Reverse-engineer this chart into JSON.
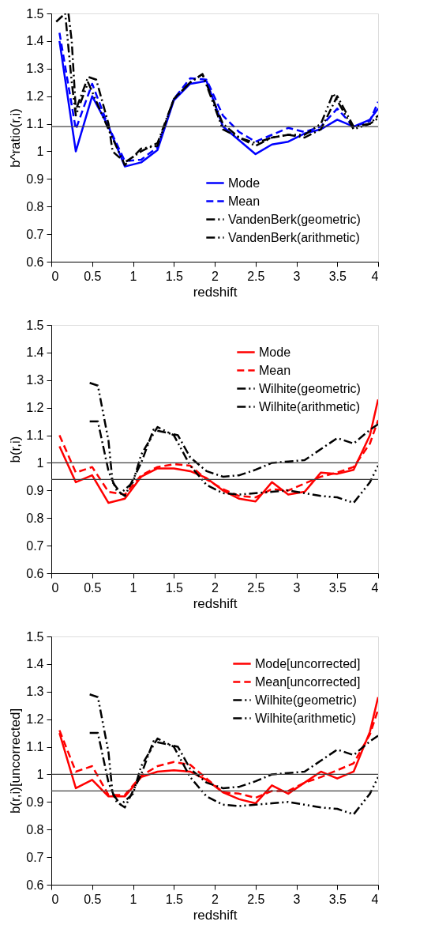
{
  "chart_data": [
    {
      "type": "line",
      "xlabel": "redshift",
      "ylabel": "b^ratio(r,i)",
      "xlim": [
        0,
        4
      ],
      "ylim": [
        0.6,
        1.5
      ],
      "xticks": [
        0,
        0.5,
        1,
        1.5,
        2,
        2.5,
        3,
        3.5,
        4
      ],
      "yticks": [
        0.6,
        0.7,
        0.8,
        0.9,
        1,
        1.1,
        1.2,
        1.3,
        1.4,
        1.5
      ],
      "legend": "bottom right",
      "ref_lines": [
        {
          "axis": "y",
          "value": 1.09,
          "color": "#404040"
        }
      ],
      "series": [
        {
          "name": "Mode",
          "color": "#0000ff",
          "line_style": "solid",
          "x": [
            0.1,
            0.3,
            0.5,
            0.7,
            0.9,
            1.1,
            1.3,
            1.5,
            1.7,
            1.9,
            2.1,
            2.3,
            2.5,
            2.7,
            2.9,
            3.1,
            3.3,
            3.5,
            3.7,
            3.9,
            4.0
          ],
          "values": [
            1.4,
            1.0,
            1.2,
            1.09,
            0.945,
            0.96,
            1.005,
            1.185,
            1.245,
            1.255,
            1.09,
            1.04,
            0.99,
            1.025,
            1.035,
            1.065,
            1.08,
            1.115,
            1.09,
            1.115,
            1.155
          ]
        },
        {
          "name": "Mean",
          "color": "#0000ff",
          "line_style": "dashed",
          "x": [
            0.1,
            0.3,
            0.5,
            0.7,
            0.9,
            1.1,
            1.3,
            1.5,
            1.7,
            1.9,
            2.1,
            2.3,
            2.5,
            2.7,
            2.9,
            3.1,
            3.3,
            3.5,
            3.7,
            3.9,
            4.0
          ],
          "values": [
            1.43,
            1.08,
            1.245,
            1.09,
            0.965,
            0.97,
            1.015,
            1.19,
            1.265,
            1.26,
            1.13,
            1.07,
            1.035,
            1.06,
            1.085,
            1.07,
            1.09,
            1.155,
            1.09,
            1.11,
            1.18
          ]
        },
        {
          "name": "VandenBerk(geometric)",
          "color": "#000000",
          "line_style": "dashdot",
          "x": [
            0.21,
            0.25,
            0.3,
            0.45,
            0.55,
            0.7,
            0.75,
            0.9,
            1.1,
            1.3,
            1.5,
            1.7,
            1.85,
            2.1,
            2.3,
            2.5,
            2.7,
            2.9,
            3.1,
            3.3,
            3.5,
            3.7,
            3.9,
            4.0
          ],
          "values": [
            1.5,
            1.4,
            1.15,
            1.27,
            1.26,
            1.1,
            1.0,
            0.96,
            1.0,
            1.03,
            1.19,
            1.25,
            1.28,
            1.1,
            1.05,
            1.02,
            1.05,
            1.06,
            1.05,
            1.08,
            1.2,
            1.09,
            1.1,
            1.13
          ]
        },
        {
          "name": "VandenBerk(arithmetic)",
          "color": "#000000",
          "line_style": "dashdotdot",
          "x": [
            0.06,
            0.17,
            0.25,
            0.3,
            0.45,
            0.7,
            0.9,
            1.1,
            1.3,
            1.5,
            1.7,
            1.85,
            2.1,
            2.3,
            2.5,
            2.7,
            2.9,
            3.1,
            3.3,
            3.45,
            3.7,
            3.9,
            4.0
          ],
          "values": [
            1.47,
            1.5,
            1.25,
            1.13,
            1.25,
            1.08,
            0.95,
            1.01,
            1.02,
            1.19,
            1.25,
            1.28,
            1.08,
            1.05,
            1.03,
            1.05,
            1.06,
            1.06,
            1.1,
            1.21,
            1.08,
            1.1,
            1.12
          ]
        }
      ]
    },
    {
      "type": "line",
      "xlabel": "redshift",
      "ylabel": "b(r,i)",
      "xlim": [
        0,
        4
      ],
      "ylim": [
        0.6,
        1.5
      ],
      "xticks": [
        0,
        0.5,
        1,
        1.5,
        2,
        2.5,
        3,
        3.5,
        4
      ],
      "yticks": [
        0.6,
        0.7,
        0.8,
        0.9,
        1,
        1.1,
        1.2,
        1.3,
        1.4,
        1.5
      ],
      "legend": "top right",
      "ref_lines": [
        {
          "axis": "y",
          "value": 1,
          "color": "#404040"
        },
        {
          "axis": "y",
          "value": 0.94,
          "color": "#404040"
        }
      ],
      "series": [
        {
          "name": "Mode",
          "color": "#ff0000",
          "line_style": "solid",
          "x": [
            0.1,
            0.3,
            0.5,
            0.7,
            0.9,
            1.1,
            1.3,
            1.5,
            1.7,
            1.9,
            2.1,
            2.3,
            2.5,
            2.7,
            2.9,
            3.1,
            3.3,
            3.5,
            3.7,
            3.9,
            4.0
          ],
          "values": [
            1.06,
            0.93,
            0.955,
            0.855,
            0.87,
            0.95,
            0.98,
            0.98,
            0.97,
            0.945,
            0.9,
            0.87,
            0.86,
            0.93,
            0.885,
            0.895,
            0.965,
            0.96,
            0.975,
            1.1,
            1.23
          ]
        },
        {
          "name": "Mean",
          "color": "#ff0000",
          "line_style": "dashed",
          "x": [
            0.1,
            0.3,
            0.5,
            0.7,
            0.9,
            1.1,
            1.3,
            1.5,
            1.7,
            1.9,
            2.1,
            2.3,
            2.5,
            2.7,
            2.9,
            3.1,
            3.3,
            3.5,
            3.7,
            3.9,
            4.0
          ],
          "values": [
            1.1,
            0.965,
            0.985,
            0.895,
            0.885,
            0.955,
            0.985,
            0.995,
            0.99,
            0.94,
            0.905,
            0.88,
            0.875,
            0.905,
            0.9,
            0.925,
            0.95,
            0.965,
            0.985,
            1.07,
            1.155
          ]
        },
        {
          "name": "Wilhite(geometric)",
          "color": "#000000",
          "line_style": "dashdot",
          "x": [
            0.47,
            0.57,
            0.7,
            0.8,
            0.9,
            1.1,
            1.25,
            1.4,
            1.55,
            1.7,
            1.9,
            2.1,
            2.3,
            2.5,
            2.7,
            2.9,
            3.1,
            3.3,
            3.5,
            3.7,
            3.9,
            4.0
          ],
          "values": [
            1.15,
            1.15,
            0.97,
            0.9,
            0.88,
            1.0,
            1.12,
            1.11,
            1.1,
            1.02,
            0.97,
            0.95,
            0.955,
            0.975,
            1.0,
            1.005,
            1.01,
            1.05,
            1.09,
            1.07,
            1.12,
            1.14
          ]
        },
        {
          "name": "Wilhite(arithmetic)",
          "color": "#000000",
          "line_style": "dashdotdot",
          "x": [
            0.47,
            0.57,
            0.7,
            0.75,
            0.85,
            1.0,
            1.1,
            1.3,
            1.5,
            1.7,
            1.9,
            2.1,
            2.3,
            2.5,
            2.7,
            2.9,
            3.1,
            3.3,
            3.5,
            3.7,
            3.9,
            4.0
          ],
          "values": [
            1.29,
            1.28,
            1.08,
            0.93,
            0.89,
            0.93,
            1.03,
            1.13,
            1.1,
            0.99,
            0.92,
            0.89,
            0.885,
            0.89,
            0.895,
            0.9,
            0.89,
            0.88,
            0.875,
            0.855,
            0.93,
            0.99
          ]
        }
      ]
    },
    {
      "type": "line",
      "xlabel": "redshift",
      "ylabel": "b(r,i)[uncorrected]",
      "xlim": [
        0,
        4
      ],
      "ylim": [
        0.6,
        1.5
      ],
      "xticks": [
        0,
        0.5,
        1,
        1.5,
        2,
        2.5,
        3,
        3.5,
        4
      ],
      "yticks": [
        0.6,
        0.7,
        0.8,
        0.9,
        1,
        1.1,
        1.2,
        1.3,
        1.4,
        1.5
      ],
      "legend": "top right",
      "ref_lines": [
        {
          "axis": "y",
          "value": 1,
          "color": "#404040"
        },
        {
          "axis": "y",
          "value": 0.94,
          "color": "#404040"
        }
      ],
      "series": [
        {
          "name": "Mode[uncorrected]",
          "color": "#ff0000",
          "line_style": "solid",
          "x": [
            0.1,
            0.3,
            0.5,
            0.7,
            0.9,
            1.1,
            1.3,
            1.5,
            1.7,
            1.9,
            2.1,
            2.3,
            2.5,
            2.7,
            2.9,
            3.1,
            3.3,
            3.5,
            3.7,
            3.9,
            4.0
          ],
          "values": [
            1.15,
            0.95,
            0.98,
            0.92,
            0.92,
            0.99,
            1.01,
            1.015,
            1.01,
            0.98,
            0.935,
            0.91,
            0.895,
            0.96,
            0.93,
            0.97,
            1.01,
            0.985,
            1.01,
            1.155,
            1.28
          ]
        },
        {
          "name": "Mean[uncorrected]",
          "color": "#ff0000",
          "line_style": "dashed",
          "x": [
            0.1,
            0.3,
            0.5,
            0.7,
            0.9,
            1.1,
            1.3,
            1.5,
            1.7,
            1.9,
            2.1,
            2.3,
            2.5,
            2.7,
            2.9,
            3.1,
            3.3,
            3.5,
            3.7,
            3.9,
            4.0
          ],
          "values": [
            1.16,
            1.01,
            1.03,
            0.925,
            0.925,
            0.995,
            1.03,
            1.045,
            1.035,
            0.985,
            0.935,
            0.93,
            0.915,
            0.94,
            0.94,
            0.97,
            0.99,
            1.015,
            1.04,
            1.145,
            1.235
          ]
        },
        {
          "name": "Wilhite(geometric)",
          "color": "#000000",
          "line_style": "dashdot",
          "x": [
            0.47,
            0.57,
            0.7,
            0.8,
            0.9,
            1.1,
            1.25,
            1.4,
            1.55,
            1.7,
            1.9,
            2.1,
            2.3,
            2.5,
            2.7,
            2.9,
            3.1,
            3.3,
            3.5,
            3.7,
            3.9,
            4.0
          ],
          "values": [
            1.15,
            1.15,
            0.97,
            0.9,
            0.88,
            1.0,
            1.12,
            1.11,
            1.1,
            1.02,
            0.97,
            0.95,
            0.955,
            0.975,
            1.0,
            1.005,
            1.01,
            1.05,
            1.09,
            1.07,
            1.12,
            1.14
          ]
        },
        {
          "name": "Wilhite(arithmetic)",
          "color": "#000000",
          "line_style": "dashdotdot",
          "x": [
            0.47,
            0.57,
            0.7,
            0.75,
            0.85,
            1.0,
            1.1,
            1.3,
            1.5,
            1.7,
            1.9,
            2.1,
            2.3,
            2.5,
            2.7,
            2.9,
            3.1,
            3.3,
            3.5,
            3.7,
            3.9,
            4.0
          ],
          "values": [
            1.29,
            1.28,
            1.08,
            0.93,
            0.89,
            0.93,
            1.03,
            1.13,
            1.1,
            0.99,
            0.92,
            0.89,
            0.885,
            0.89,
            0.895,
            0.9,
            0.89,
            0.88,
            0.875,
            0.855,
            0.93,
            0.99
          ]
        }
      ]
    }
  ]
}
